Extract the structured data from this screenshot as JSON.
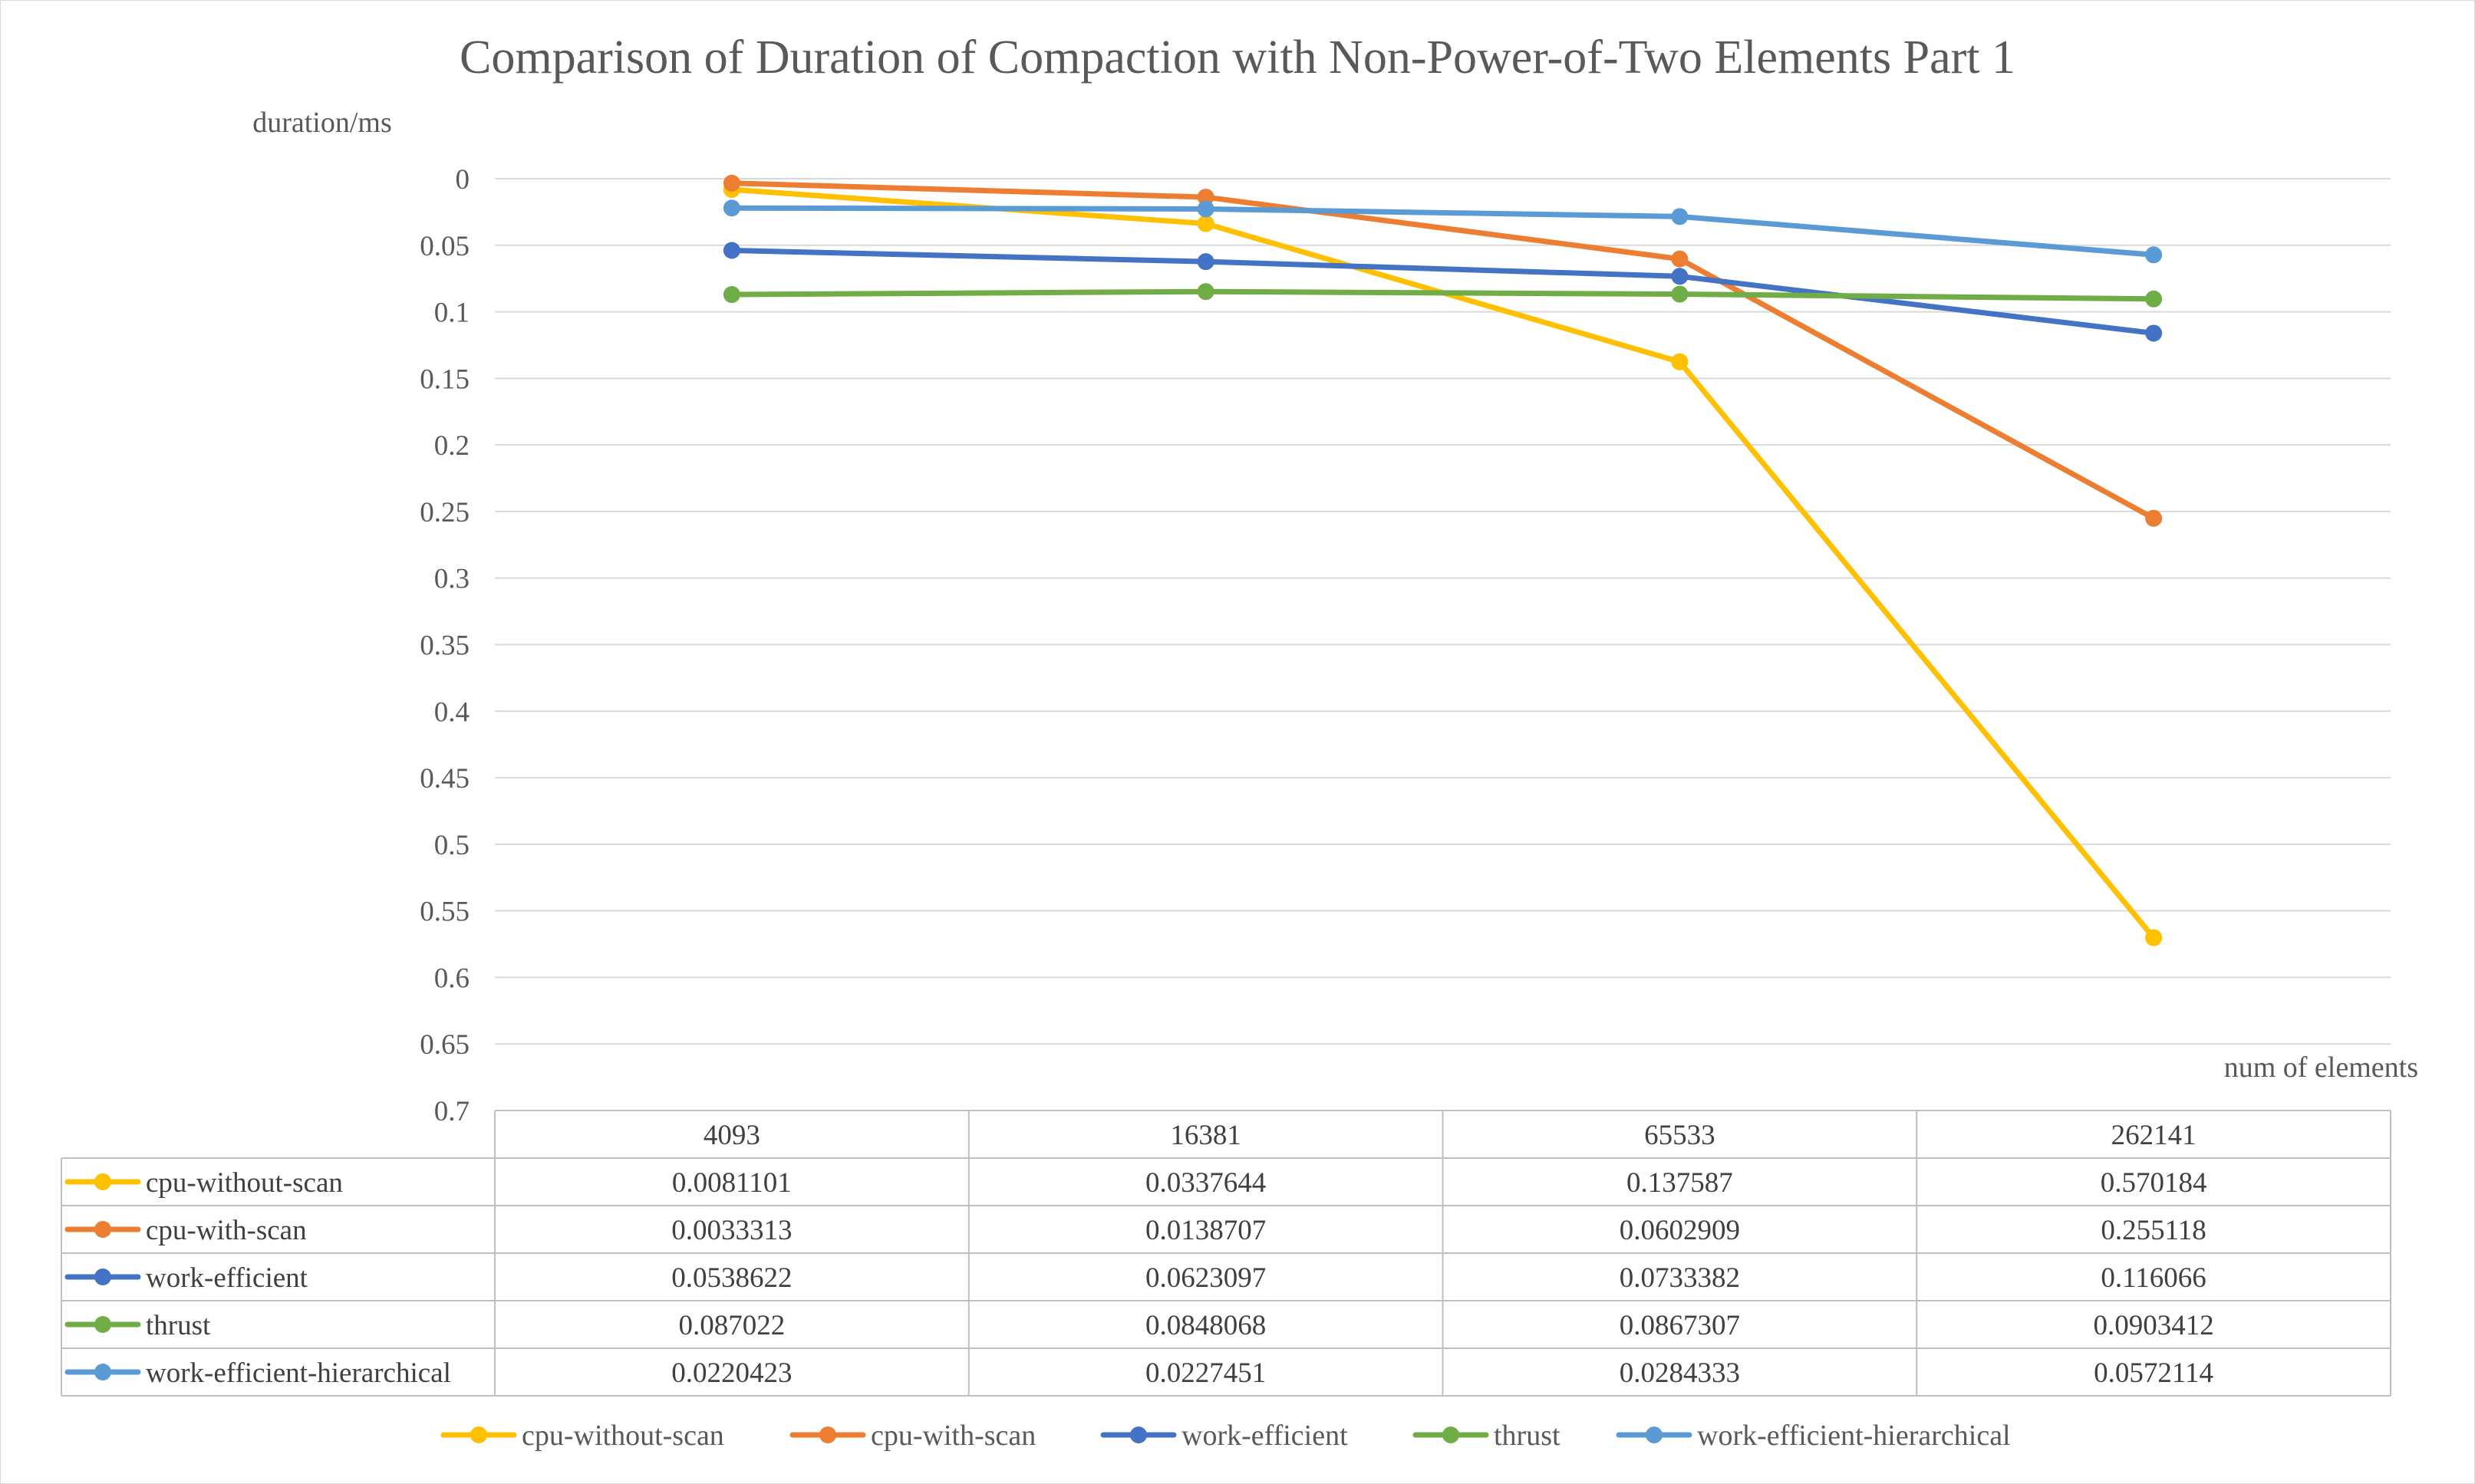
{
  "chart_data": {
    "type": "line",
    "title": "Comparison of Duration of Compaction with Non-Power-of-Two Elements Part 1",
    "ylabel": "duration/ms",
    "xlabel": "num of elements",
    "y_reversed": true,
    "ylim": [
      0,
      0.7
    ],
    "y_ticks": [
      "0",
      "0.05",
      "0.1",
      "0.15",
      "0.2",
      "0.25",
      "0.3",
      "0.35",
      "0.4",
      "0.45",
      "0.5",
      "0.55",
      "0.6",
      "0.65",
      "0.7"
    ],
    "y_tick_values": [
      0,
      0.05,
      0.1,
      0.15,
      0.2,
      0.25,
      0.3,
      0.35,
      0.4,
      0.45,
      0.5,
      0.55,
      0.6,
      0.65,
      0.7
    ],
    "grid": true,
    "legend_position": "bottom",
    "categories": [
      "4093",
      "16381",
      "65533",
      "262141"
    ],
    "series": [
      {
        "name": "cpu-without-scan",
        "color": "#FFC000",
        "values": [
          0.0081101,
          0.0337644,
          0.137587,
          0.570184
        ],
        "labels": [
          "0.0081101",
          "0.0337644",
          "0.137587",
          "0.570184"
        ]
      },
      {
        "name": "cpu-with-scan",
        "color": "#ED7D31",
        "values": [
          0.0033313,
          0.0138707,
          0.0602909,
          0.255118
        ],
        "labels": [
          "0.0033313",
          "0.0138707",
          "0.0602909",
          "0.255118"
        ]
      },
      {
        "name": "work-efficient",
        "color": "#4472C4",
        "values": [
          0.0538622,
          0.0623097,
          0.0733382,
          0.116066
        ],
        "labels": [
          "0.0538622",
          "0.0623097",
          "0.0733382",
          "0.116066"
        ]
      },
      {
        "name": "thrust",
        "color": "#70AD47",
        "values": [
          0.087022,
          0.0848068,
          0.0867307,
          0.0903412
        ],
        "labels": [
          "0.087022",
          "0.0848068",
          "0.0867307",
          "0.0903412"
        ]
      },
      {
        "name": "work-efficient-hierarchical",
        "color": "#5B9BD5",
        "values": [
          0.0220423,
          0.0227451,
          0.0284333,
          0.0572114
        ],
        "labels": [
          "0.0220423",
          "0.0227451",
          "0.0284333",
          "0.0572114"
        ]
      }
    ]
  }
}
